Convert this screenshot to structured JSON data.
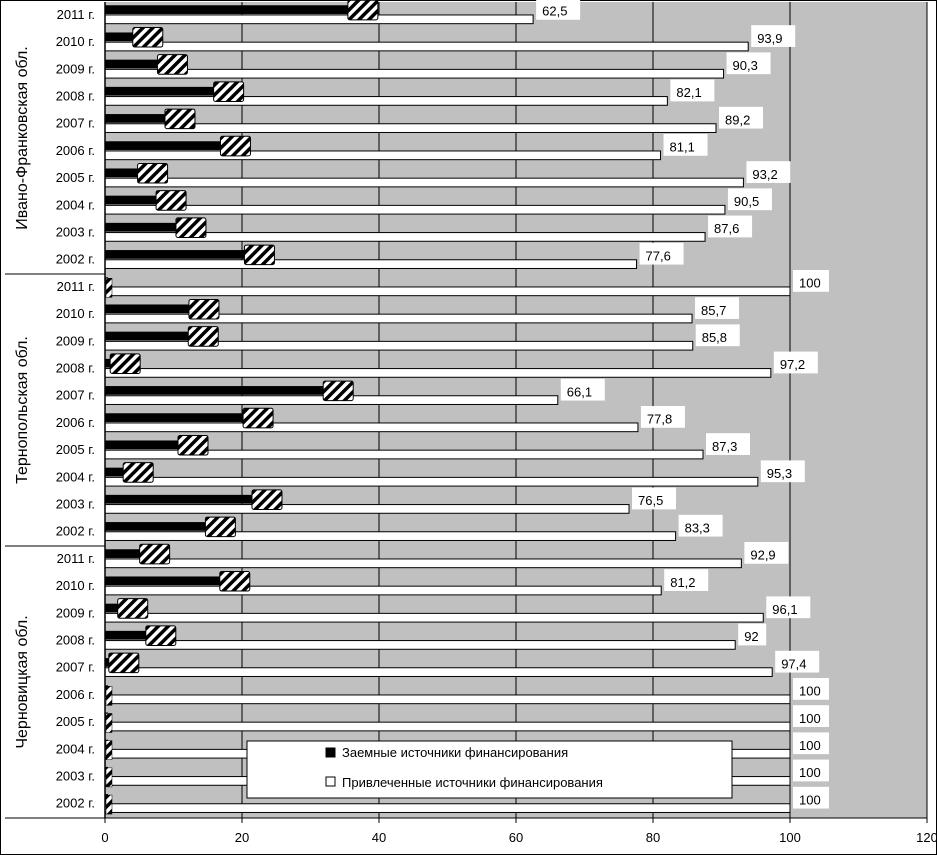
{
  "chart_data": {
    "type": "bar",
    "orientation": "horizontal",
    "xlim": [
      0,
      120
    ],
    "x_ticks": [
      0,
      20,
      40,
      60,
      80,
      100,
      120
    ],
    "grid": true,
    "legend_position": "bottom-center",
    "legend": [
      {
        "name": "Заемные источники финансирования",
        "symbol": "black-square"
      },
      {
        "name": "Привлеченные источники финансирования",
        "symbol": "white-square"
      }
    ],
    "groups": [
      {
        "name": "Ивано-Франковская обл.",
        "years": [
          "2011 г.",
          "2010 г.",
          "2009 г.",
          "2008 г.",
          "2007 г.",
          "2006 г.",
          "2005 г.",
          "2004 г.",
          "2003 г.",
          "2002 г."
        ],
        "borrowed": [
          37.5,
          6.1,
          9.7,
          17.9,
          10.8,
          18.9,
          6.8,
          9.5,
          12.4,
          22.4
        ],
        "attracted": [
          62.5,
          93.9,
          90.3,
          82.1,
          89.2,
          81.1,
          93.2,
          90.5,
          87.6,
          77.6
        ],
        "attracted_labels": [
          "62,5",
          "93,9",
          "90,3",
          "82,1",
          "89,2",
          "81,1",
          "93,2",
          "90,5",
          "87,6",
          "77,6"
        ]
      },
      {
        "name": "Тернопольская обл.",
        "years": [
          "2011 г.",
          "2010 г.",
          "2009 г.",
          "2008 г.",
          "2007 г.",
          "2006 г.",
          "2005 г.",
          "2004 г.",
          "2003 г.",
          "2002 г."
        ],
        "borrowed": [
          0,
          14.3,
          14.2,
          2.8,
          33.9,
          22.2,
          12.7,
          4.7,
          23.5,
          16.7
        ],
        "attracted": [
          100,
          85.7,
          85.8,
          97.2,
          66.1,
          77.8,
          87.3,
          95.3,
          76.5,
          83.3
        ],
        "attracted_labels": [
          "100",
          "85,7",
          "85,8",
          "97,2",
          "66,1",
          "77,8",
          "87,3",
          "95,3",
          "76,5",
          "83,3"
        ]
      },
      {
        "name": "Черновицкая обл.",
        "years": [
          "2011 г.",
          "2010 г.",
          "2009 г.",
          "2008 г.",
          "2007 г.",
          "2006 г.",
          "2005 г.",
          "2004 г.",
          "2003 г.",
          "2002 г."
        ],
        "borrowed": [
          7.1,
          18.8,
          3.9,
          8,
          2.6,
          0,
          0,
          0,
          0,
          0
        ],
        "attracted": [
          92.9,
          81.2,
          96.1,
          92,
          97.4,
          100,
          100,
          100,
          100,
          100
        ],
        "attracted_labels": [
          "92,9",
          "81,2",
          "96,1",
          "92",
          "97,4",
          "100",
          "100",
          "100",
          "100",
          "100"
        ]
      }
    ]
  },
  "colors": {
    "plot_background": "#c0c0c0",
    "borrowed_bar": "#000000",
    "attracted_bar": "#ffffff",
    "gridline": "#000000"
  }
}
